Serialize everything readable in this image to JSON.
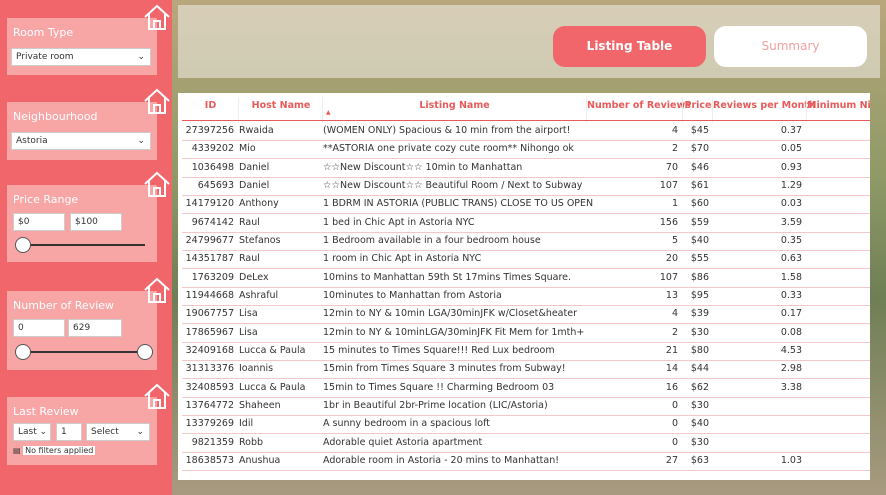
{
  "sidebar": {
    "filters": [
      {
        "title": "Room Type",
        "value": "Private room"
      },
      {
        "title": "Neighbourhood",
        "value": "Astoria"
      },
      {
        "title": "Price Range",
        "min": "$0",
        "max": "$100"
      },
      {
        "title": "Number of Review",
        "min": "0",
        "max": "629"
      },
      {
        "title": "Last Review",
        "period": "Last",
        "count": "1",
        "unit": "Select",
        "status": "No filters applied"
      }
    ]
  },
  "tabs": [
    "Listing Table",
    "Summary"
  ],
  "table": {
    "columns": [
      "ID",
      "Host Name",
      "Listing Name",
      "Number of Reviews",
      "Price",
      "Reviews per Month",
      "Minimum Ni"
    ],
    "rows": [
      [
        27397256,
        "Rwaida",
        "(WOMEN ONLY) Spacious & 10 min from the airport!",
        4,
        "$45",
        0.37
      ],
      [
        4339202,
        "Mio",
        "**ASTORIA one private cozy cute room** Nihongo ok",
        2,
        "$70",
        0.05
      ],
      [
        1036498,
        "Daniel",
        "☆☆New Discount☆☆ 10min to Manhattan",
        70,
        "$46",
        0.93
      ],
      [
        645693,
        "Daniel",
        "☆☆New Discount☆☆ Beautiful Room / Next to Subway",
        107,
        "$61",
        1.29
      ],
      [
        14179120,
        "Anthony",
        "1 BDRM IN ASTORIA (PUBLIC TRANS) CLOSE TO US OPEN",
        1,
        "$60",
        0.03
      ],
      [
        9674142,
        "Raul",
        "1 bed in Chic Apt in Astoria NYC",
        156,
        "$59",
        3.59
      ],
      [
        24799677,
        "Stefanos",
        "1 Bedroom available in a four bedroom house",
        5,
        "$40",
        0.35
      ],
      [
        14351787,
        "Raul",
        "1 room in Chic Apt in Astoria NYC",
        20,
        "$55",
        0.63
      ],
      [
        1763209,
        "DeLex",
        "10mins to Manhattan 59th St 17mins Times Square.",
        107,
        "$86",
        1.58
      ],
      [
        11944668,
        "Ashraful",
        "10minutes to Manhattan from Astoria",
        13,
        "$95",
        0.33
      ],
      [
        19067757,
        "Lisa",
        "12min to NY & 10min LGA/30minJFK w/Closet&heater",
        4,
        "$39",
        0.17
      ],
      [
        17865967,
        "Lisa",
        "12min to NY & 10minLGA/30minJFK Fit Mem for 1mth+",
        2,
        "$30",
        0.08
      ],
      [
        32409168,
        "Lucca & Paula",
        "15 minutes to Times Square!!! Red Lux bedroom",
        21,
        "$80",
        4.53
      ],
      [
        31313376,
        "Ioannis",
        "15min from Times Square 3 minutes from Subway!",
        14,
        "$44",
        2.98
      ],
      [
        32408593,
        "Lucca & Paula",
        "15min to Times Square !! Charming Bedroom 03",
        16,
        "$62",
        3.38
      ],
      [
        13764772,
        "Shaheen",
        "1br in Beautiful 2br-Prime location (LIC/Astoria)",
        0,
        "$30",
        null
      ],
      [
        13379269,
        "Idil",
        "A sunny bedroom in a spacious loft",
        0,
        "$40",
        null
      ],
      [
        9821359,
        "Robb",
        "Adorable quiet Astoria apartment",
        0,
        "$30",
        null
      ],
      [
        18638573,
        "Anushua",
        "Adorable room in Astoria - 20 mins to Manhattan!",
        27,
        "$63",
        1.03
      ]
    ]
  }
}
